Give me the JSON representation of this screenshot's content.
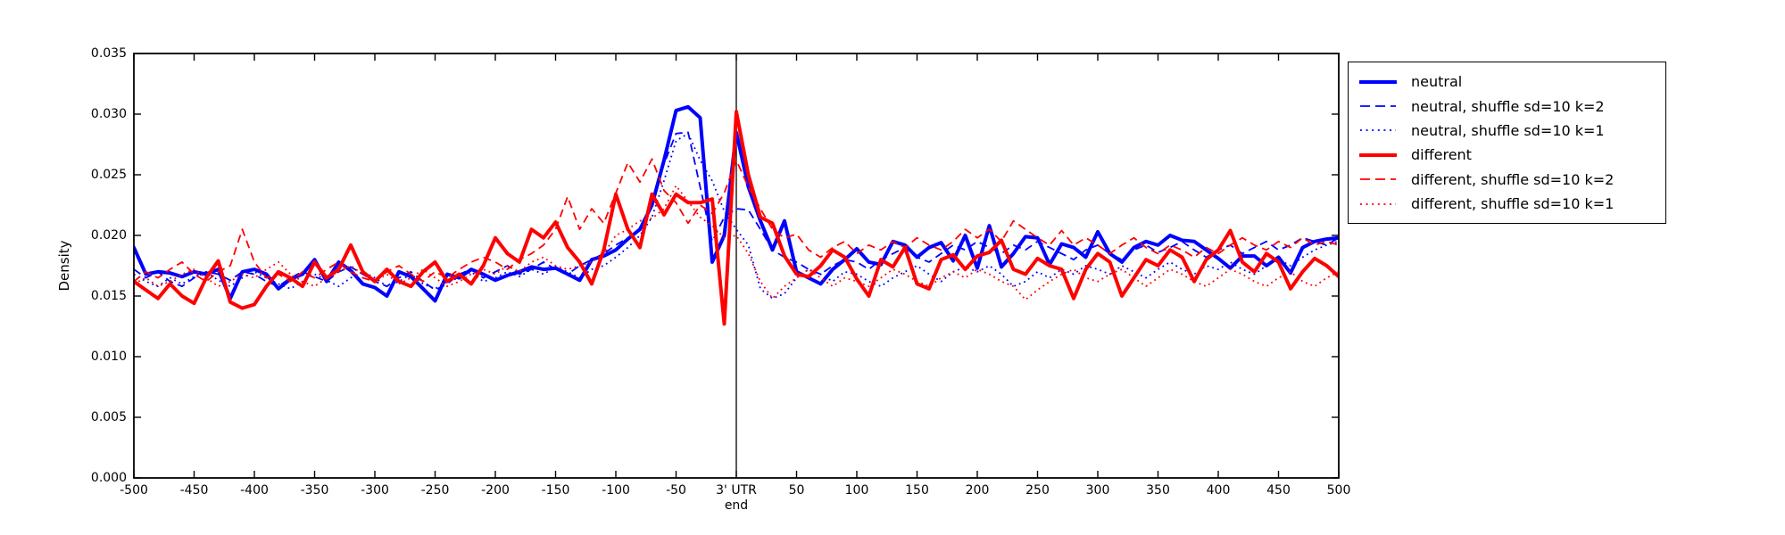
{
  "chart_data": {
    "type": "line",
    "title": "",
    "ylabel": "Density",
    "xlim": [
      -500,
      500
    ],
    "ylim": [
      0,
      0.035
    ],
    "grid": false,
    "legend_position": "outside-right-top",
    "vline_x": 0,
    "axis_color": "#000000",
    "background_color": "#ffffff",
    "x_ticks": [
      {
        "value": -500,
        "label": "-500"
      },
      {
        "value": -450,
        "label": "-450"
      },
      {
        "value": -400,
        "label": "-400"
      },
      {
        "value": -350,
        "label": "-350"
      },
      {
        "value": -300,
        "label": "-300"
      },
      {
        "value": -250,
        "label": "-250"
      },
      {
        "value": -200,
        "label": "-200"
      },
      {
        "value": -150,
        "label": "-150"
      },
      {
        "value": -100,
        "label": "-100"
      },
      {
        "value": -50,
        "label": "-50"
      },
      {
        "value": 0,
        "label": "3' UTR",
        "sublabel": "end"
      },
      {
        "value": 50,
        "label": "50"
      },
      {
        "value": 100,
        "label": "100"
      },
      {
        "value": 150,
        "label": "150"
      },
      {
        "value": 200,
        "label": "200"
      },
      {
        "value": 250,
        "label": "250"
      },
      {
        "value": 300,
        "label": "300"
      },
      {
        "value": 350,
        "label": "350"
      },
      {
        "value": 400,
        "label": "400"
      },
      {
        "value": 450,
        "label": "450"
      },
      {
        "value": 500,
        "label": "500"
      }
    ],
    "y_ticks": [
      {
        "value": 0.0,
        "label": "0.000"
      },
      {
        "value": 0.005,
        "label": "0.005"
      },
      {
        "value": 0.01,
        "label": "0.010"
      },
      {
        "value": 0.015,
        "label": "0.015"
      },
      {
        "value": 0.02,
        "label": "0.020"
      },
      {
        "value": 0.025,
        "label": "0.025"
      },
      {
        "value": 0.03,
        "label": "0.030"
      },
      {
        "value": 0.035,
        "label": "0.035"
      }
    ],
    "x": [
      -500,
      -490,
      -480,
      -470,
      -460,
      -450,
      -440,
      -430,
      -420,
      -410,
      -400,
      -390,
      -380,
      -370,
      -360,
      -350,
      -340,
      -330,
      -320,
      -310,
      -300,
      -290,
      -280,
      -270,
      -260,
      -250,
      -240,
      -230,
      -220,
      -210,
      -200,
      -190,
      -180,
      -170,
      -160,
      -150,
      -140,
      -130,
      -120,
      -110,
      -100,
      -90,
      -80,
      -70,
      -60,
      -50,
      -40,
      -30,
      -20,
      -10,
      0,
      10,
      20,
      30,
      40,
      50,
      60,
      70,
      80,
      90,
      100,
      110,
      120,
      130,
      140,
      150,
      160,
      170,
      180,
      190,
      200,
      210,
      220,
      230,
      240,
      250,
      260,
      270,
      280,
      290,
      300,
      310,
      320,
      330,
      340,
      350,
      360,
      370,
      380,
      390,
      400,
      410,
      420,
      430,
      440,
      450,
      460,
      470,
      480,
      490,
      500
    ],
    "series": [
      {
        "name": "neutral",
        "color": "#0000ff",
        "style": "solid",
        "linewidth": 4,
        "values": [
          0.019,
          0.0168,
          0.017,
          0.0169,
          0.0166,
          0.017,
          0.0168,
          0.0172,
          0.0148,
          0.017,
          0.0172,
          0.0168,
          0.0156,
          0.0164,
          0.0168,
          0.018,
          0.0162,
          0.0178,
          0.0171,
          0.016,
          0.0157,
          0.015,
          0.017,
          0.0166,
          0.0156,
          0.0146,
          0.0168,
          0.0165,
          0.0172,
          0.0168,
          0.0163,
          0.0167,
          0.017,
          0.0174,
          0.0172,
          0.0173,
          0.0168,
          0.0163,
          0.018,
          0.0183,
          0.0188,
          0.0197,
          0.0205,
          0.0225,
          0.0262,
          0.0303,
          0.0306,
          0.0297,
          0.0178,
          0.02,
          0.0285,
          0.024,
          0.0212,
          0.0188,
          0.0212,
          0.017,
          0.0165,
          0.016,
          0.0172,
          0.018,
          0.0189,
          0.0178,
          0.0176,
          0.0195,
          0.0192,
          0.0182,
          0.019,
          0.0194,
          0.0179,
          0.02,
          0.0173,
          0.0208,
          0.0174,
          0.0185,
          0.0199,
          0.0198,
          0.0176,
          0.0193,
          0.019,
          0.0182,
          0.0203,
          0.0185,
          0.0178,
          0.019,
          0.0195,
          0.0192,
          0.02,
          0.0196,
          0.0195,
          0.0188,
          0.0181,
          0.0173,
          0.0183,
          0.0183,
          0.0175,
          0.0182,
          0.0169,
          0.019,
          0.0195,
          0.0197,
          0.0198
        ]
      },
      {
        "name": "neutral, shuffle sd=10 k=2",
        "color": "#0000ff",
        "style": "dashed",
        "linewidth": 1.8,
        "values": [
          0.0172,
          0.0165,
          0.017,
          0.0162,
          0.0158,
          0.0165,
          0.017,
          0.0168,
          0.0163,
          0.017,
          0.0168,
          0.0162,
          0.0158,
          0.0165,
          0.017,
          0.0166,
          0.0162,
          0.017,
          0.0174,
          0.0168,
          0.0162,
          0.0158,
          0.0165,
          0.017,
          0.0162,
          0.0155,
          0.016,
          0.0168,
          0.0172,
          0.0165,
          0.017,
          0.0175,
          0.0168,
          0.0172,
          0.0178,
          0.0172,
          0.0168,
          0.0175,
          0.018,
          0.0185,
          0.0192,
          0.0198,
          0.0205,
          0.0228,
          0.0259,
          0.0284,
          0.0285,
          0.024,
          0.0195,
          0.0215,
          0.0222,
          0.0221,
          0.0205,
          0.0188,
          0.0182,
          0.0178,
          0.0172,
          0.0168,
          0.0175,
          0.018,
          0.0178,
          0.0172,
          0.018,
          0.0185,
          0.019,
          0.0182,
          0.0178,
          0.0185,
          0.0192,
          0.0188,
          0.0195,
          0.019,
          0.0185,
          0.0192,
          0.0188,
          0.0195,
          0.019,
          0.0185,
          0.018,
          0.0188,
          0.0192,
          0.0185,
          0.018,
          0.0188,
          0.0192,
          0.0186,
          0.019,
          0.0195,
          0.0188,
          0.0182,
          0.0188,
          0.0192,
          0.0185,
          0.019,
          0.0195,
          0.0188,
          0.0192,
          0.0198,
          0.0195,
          0.0192,
          0.0198
        ]
      },
      {
        "name": "neutral, shuffle sd=10 k=1",
        "color": "#0000ff",
        "style": "dotted",
        "linewidth": 1.8,
        "values": [
          0.0168,
          0.0162,
          0.0158,
          0.0165,
          0.016,
          0.0166,
          0.017,
          0.0163,
          0.0158,
          0.0165,
          0.017,
          0.0165,
          0.016,
          0.0156,
          0.0162,
          0.0168,
          0.0163,
          0.0158,
          0.0165,
          0.017,
          0.0165,
          0.0158,
          0.0162,
          0.0168,
          0.016,
          0.0156,
          0.0162,
          0.0165,
          0.017,
          0.0162,
          0.0165,
          0.017,
          0.0166,
          0.0172,
          0.0168,
          0.0174,
          0.017,
          0.0165,
          0.0172,
          0.0175,
          0.0182,
          0.019,
          0.02,
          0.0215,
          0.0245,
          0.0278,
          0.0284,
          0.0262,
          0.0245,
          0.022,
          0.0205,
          0.0192,
          0.0156,
          0.0148,
          0.0152,
          0.0165,
          0.0172,
          0.0168,
          0.0162,
          0.017,
          0.0168,
          0.0162,
          0.0158,
          0.0165,
          0.017,
          0.0175,
          0.0168,
          0.0162,
          0.017,
          0.0174,
          0.017,
          0.0175,
          0.0168,
          0.0158,
          0.0162,
          0.017,
          0.0165,
          0.0172,
          0.0168,
          0.0175,
          0.0172,
          0.0168,
          0.0175,
          0.017,
          0.0165,
          0.0172,
          0.0178,
          0.0172,
          0.0168,
          0.0175,
          0.0172,
          0.0178,
          0.0172,
          0.0168,
          0.0175,
          0.018,
          0.0175,
          0.0182,
          0.0188,
          0.0192,
          0.0195
        ]
      },
      {
        "name": "different",
        "color": "#ff0000",
        "style": "solid",
        "linewidth": 4,
        "values": [
          0.0162,
          0.0155,
          0.0148,
          0.016,
          0.015,
          0.0144,
          0.0165,
          0.0179,
          0.0145,
          0.014,
          0.0143,
          0.0158,
          0.017,
          0.0165,
          0.0158,
          0.0178,
          0.0165,
          0.0172,
          0.0192,
          0.017,
          0.0162,
          0.0172,
          0.0162,
          0.0158,
          0.017,
          0.0178,
          0.0162,
          0.0168,
          0.016,
          0.0175,
          0.0198,
          0.0185,
          0.0178,
          0.0205,
          0.0198,
          0.0211,
          0.019,
          0.0178,
          0.016,
          0.0188,
          0.0234,
          0.0205,
          0.019,
          0.0234,
          0.0217,
          0.0234,
          0.0227,
          0.0227,
          0.023,
          0.0127,
          0.0302,
          0.025,
          0.0215,
          0.021,
          0.0183,
          0.0168,
          0.0166,
          0.0175,
          0.0188,
          0.0182,
          0.0164,
          0.015,
          0.018,
          0.0174,
          0.019,
          0.016,
          0.0156,
          0.018,
          0.0184,
          0.0172,
          0.0183,
          0.0186,
          0.0196,
          0.0172,
          0.0168,
          0.0181,
          0.0175,
          0.0172,
          0.0148,
          0.0172,
          0.0185,
          0.0178,
          0.015,
          0.0165,
          0.018,
          0.0175,
          0.0188,
          0.0182,
          0.0162,
          0.018,
          0.0188,
          0.0204,
          0.0178,
          0.017,
          0.0185,
          0.0178,
          0.0156,
          0.017,
          0.0181,
          0.0175,
          0.0166
        ]
      },
      {
        "name": "different, shuffle sd=10 k=2",
        "color": "#ff0000",
        "style": "dashed",
        "linewidth": 1.8,
        "values": [
          0.0162,
          0.017,
          0.0165,
          0.0172,
          0.0178,
          0.0168,
          0.0162,
          0.017,
          0.0175,
          0.0205,
          0.0178,
          0.0165,
          0.0168,
          0.0162,
          0.017,
          0.0165,
          0.0172,
          0.0178,
          0.017,
          0.0165,
          0.0162,
          0.017,
          0.0175,
          0.0168,
          0.0162,
          0.017,
          0.0165,
          0.0172,
          0.0178,
          0.0182,
          0.0178,
          0.0172,
          0.018,
          0.0185,
          0.0192,
          0.0205,
          0.0232,
          0.0205,
          0.0222,
          0.021,
          0.0235,
          0.026,
          0.0244,
          0.0263,
          0.0237,
          0.0227,
          0.021,
          0.0225,
          0.0218,
          0.0235,
          0.0262,
          0.024,
          0.0222,
          0.0205,
          0.0198,
          0.0201,
          0.0188,
          0.0182,
          0.019,
          0.0195,
          0.0185,
          0.0192,
          0.0188,
          0.0195,
          0.019,
          0.0198,
          0.0192,
          0.0188,
          0.0195,
          0.0205,
          0.0198,
          0.0205,
          0.0195,
          0.0212,
          0.0205,
          0.0198,
          0.0192,
          0.0204,
          0.0192,
          0.0198,
          0.0192,
          0.0185,
          0.0192,
          0.0198,
          0.019,
          0.0185,
          0.0192,
          0.0188,
          0.0182,
          0.019,
          0.0185,
          0.0192,
          0.0198,
          0.0192,
          0.0188,
          0.0195,
          0.019,
          0.0198,
          0.0192,
          0.0195,
          0.0192
        ]
      },
      {
        "name": "different, shuffle sd=10 k=1",
        "color": "#ff0000",
        "style": "dotted",
        "linewidth": 1.8,
        "values": [
          0.016,
          0.0165,
          0.0158,
          0.0162,
          0.0168,
          0.0172,
          0.0165,
          0.0158,
          0.0162,
          0.0168,
          0.0165,
          0.0172,
          0.0178,
          0.0168,
          0.0162,
          0.0158,
          0.0165,
          0.017,
          0.0175,
          0.0168,
          0.0162,
          0.0168,
          0.016,
          0.0165,
          0.0172,
          0.0165,
          0.0158,
          0.0162,
          0.0168,
          0.0172,
          0.0168,
          0.0175,
          0.017,
          0.0178,
          0.0182,
          0.0175,
          0.0172,
          0.0175,
          0.0178,
          0.0185,
          0.02,
          0.0205,
          0.0212,
          0.0214,
          0.0222,
          0.0241,
          0.0228,
          0.0215,
          0.0208,
          0.0198,
          0.02,
          0.0185,
          0.0162,
          0.0148,
          0.0158,
          0.0165,
          0.0172,
          0.0165,
          0.0158,
          0.0165,
          0.0162,
          0.0158,
          0.0165,
          0.0172,
          0.0168,
          0.0162,
          0.0158,
          0.0165,
          0.017,
          0.0165,
          0.0172,
          0.0168,
          0.0162,
          0.0158,
          0.0147,
          0.0155,
          0.0162,
          0.0168,
          0.0172,
          0.0165,
          0.0162,
          0.0168,
          0.0172,
          0.0165,
          0.0158,
          0.0165,
          0.0172,
          0.0168,
          0.0162,
          0.0158,
          0.0165,
          0.0172,
          0.0168,
          0.0162,
          0.0158,
          0.0165,
          0.017,
          0.0162,
          0.0158,
          0.0165,
          0.017
        ]
      }
    ]
  }
}
